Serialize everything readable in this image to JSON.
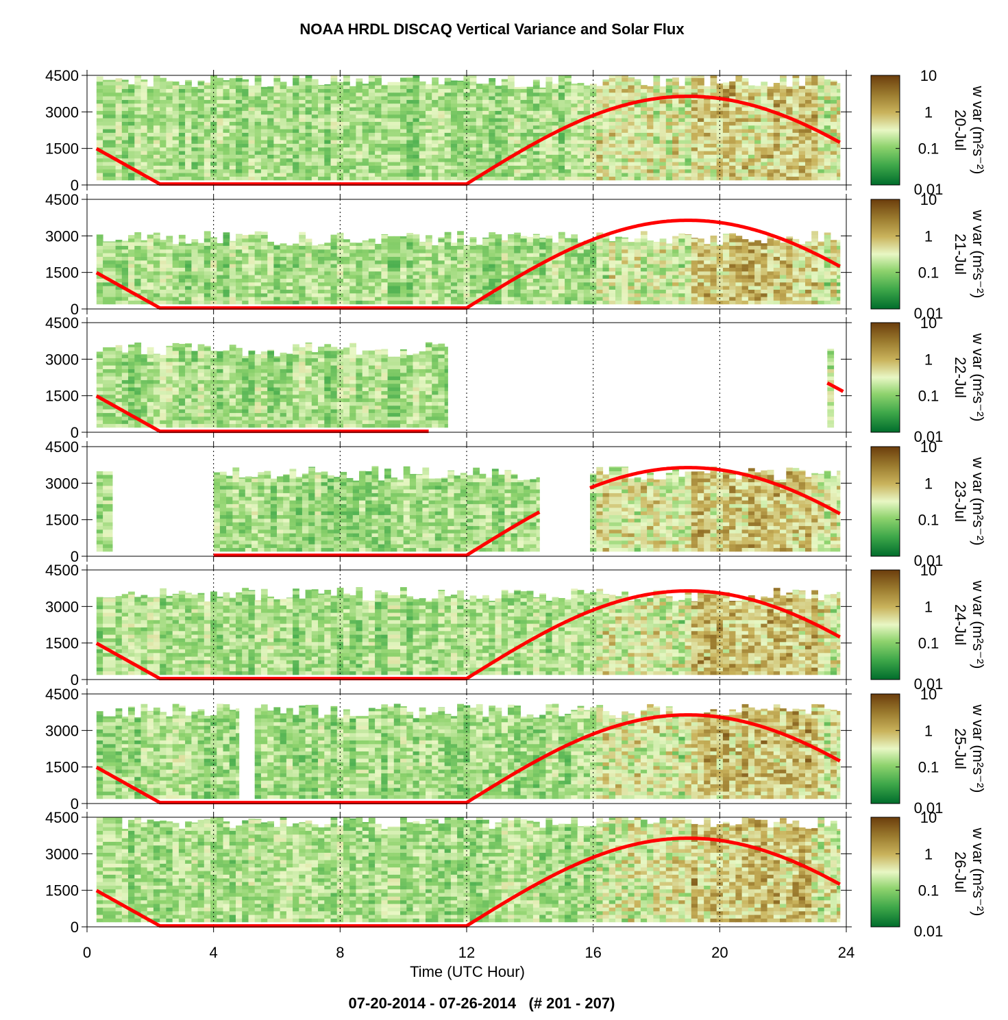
{
  "title": "NOAA HRDL DISCAQ Vertical Variance and Solar Flux",
  "footer": "07-20-2014 - 07-26-2014   (# 201 - 207)",
  "xlabel": "Time (UTC Hour)",
  "colorbar_label": "w var (m²s⁻²)",
  "colors": {
    "flux_line": "#ff0000",
    "colormap": [
      "#006d2c",
      "#3fa84a",
      "#8fd36e",
      "#e8f7c4",
      "#c9b35c",
      "#9a7a2e",
      "#6b3d0c"
    ]
  },
  "chart_data": [
    {
      "type": "heatmap",
      "day_label": "20-Jul",
      "x_range": [
        0,
        24
      ],
      "y_range": [
        0,
        4500
      ],
      "x_ticks": [
        "0",
        "4",
        "8",
        "12",
        "16",
        "20",
        "24"
      ],
      "y_ticks": [
        "0",
        "1500",
        "3000",
        "4500"
      ],
      "colorbar": {
        "scale": "log",
        "range": [
          0.01,
          10
        ],
        "ticks": [
          "0.01",
          "0.1",
          "1",
          "10"
        ]
      },
      "data_extent": [
        [
          0.3,
          23.8
        ]
      ],
      "data_top_height": 4400,
      "flux_segments": [
        [
          0.3,
          23.8
        ]
      ],
      "grid": "dotted vertical at 4-hour intervals"
    },
    {
      "type": "heatmap",
      "day_label": "21-Jul",
      "x_range": [
        0,
        24
      ],
      "y_range": [
        0,
        4500
      ],
      "x_ticks": [
        "0",
        "4",
        "8",
        "12",
        "16",
        "20",
        "24"
      ],
      "y_ticks": [
        "0",
        "1500",
        "3000",
        "4500"
      ],
      "colorbar": {
        "scale": "log",
        "range": [
          0.01,
          10
        ],
        "ticks": [
          "0.01",
          "0.1",
          "1",
          "10"
        ]
      },
      "data_extent": [
        [
          0.3,
          23.8
        ]
      ],
      "data_top_height": 3000,
      "flux_segments": [
        [
          0.3,
          23.8
        ]
      ],
      "grid": "dotted vertical at 4-hour intervals"
    },
    {
      "type": "heatmap",
      "day_label": "22-Jul",
      "x_range": [
        0,
        24
      ],
      "y_range": [
        0,
        4500
      ],
      "x_ticks": [
        "0",
        "4",
        "8",
        "12",
        "16",
        "20",
        "24"
      ],
      "y_ticks": [
        "0",
        "1500",
        "3000",
        "4500"
      ],
      "colorbar": {
        "scale": "log",
        "range": [
          0.01,
          10
        ],
        "ticks": [
          "0.01",
          "0.1",
          "1",
          "10"
        ]
      },
      "data_extent": [
        [
          0.3,
          11.4
        ],
        [
          23.4,
          23.6
        ]
      ],
      "data_top_height": 3500,
      "flux_segments": [
        [
          0.3,
          10.8
        ],
        [
          23.4,
          23.9
        ]
      ],
      "grid": "dotted vertical at 4-hour intervals"
    },
    {
      "type": "heatmap",
      "day_label": "23-Jul",
      "x_range": [
        0,
        24
      ],
      "y_range": [
        0,
        4500
      ],
      "x_ticks": [
        "0",
        "4",
        "8",
        "12",
        "16",
        "20",
        "24"
      ],
      "y_ticks": [
        "0",
        "1500",
        "3000",
        "4500"
      ],
      "colorbar": {
        "scale": "log",
        "range": [
          0.01,
          10
        ],
        "ticks": [
          "0.01",
          "0.1",
          "1",
          "10"
        ]
      },
      "data_extent": [
        [
          0.3,
          0.8
        ],
        [
          4.0,
          14.3
        ],
        [
          15.9,
          23.8
        ]
      ],
      "data_top_height": 3500,
      "flux_segments": [
        [
          4.0,
          14.3
        ],
        [
          15.9,
          23.8
        ]
      ],
      "grid": "dotted vertical at 4-hour intervals"
    },
    {
      "type": "heatmap",
      "day_label": "24-Jul",
      "x_range": [
        0,
        24
      ],
      "y_range": [
        0,
        4500
      ],
      "x_ticks": [
        "0",
        "4",
        "8",
        "12",
        "16",
        "20",
        "24"
      ],
      "y_ticks": [
        "0",
        "1500",
        "3000",
        "4500"
      ],
      "colorbar": {
        "scale": "log",
        "range": [
          0.01,
          10
        ],
        "ticks": [
          "0.01",
          "0.1",
          "1",
          "10"
        ]
      },
      "data_extent": [
        [
          0.3,
          23.8
        ]
      ],
      "data_top_height": 3600,
      "flux_segments": [
        [
          0.3,
          23.8
        ]
      ],
      "grid": "dotted vertical at 4-hour intervals"
    },
    {
      "type": "heatmap",
      "day_label": "25-Jul",
      "x_range": [
        0,
        24
      ],
      "y_range": [
        0,
        4500
      ],
      "x_ticks": [
        "0",
        "4",
        "8",
        "12",
        "16",
        "20",
        "24"
      ],
      "y_ticks": [
        "0",
        "1500",
        "3000",
        "4500"
      ],
      "colorbar": {
        "scale": "log",
        "range": [
          0.01,
          10
        ],
        "ticks": [
          "0.01",
          "0.1",
          "1",
          "10"
        ]
      },
      "data_extent": [
        [
          0.3,
          4.8
        ],
        [
          5.3,
          23.8
        ]
      ],
      "data_top_height": 3900,
      "flux_segments": [
        [
          0.3,
          23.8
        ]
      ],
      "grid": "dotted vertical at 4-hour intervals"
    },
    {
      "type": "heatmap",
      "day_label": "26-Jul",
      "x_range": [
        0,
        24
      ],
      "y_range": [
        0,
        4500
      ],
      "x_ticks": [
        "0",
        "4",
        "8",
        "12",
        "16",
        "20",
        "24"
      ],
      "y_ticks": [
        "0",
        "1500",
        "3000",
        "4500"
      ],
      "colorbar": {
        "scale": "log",
        "range": [
          0.01,
          10
        ],
        "ticks": [
          "0.01",
          "0.1",
          "1",
          "10"
        ]
      },
      "data_extent": [
        [
          0.3,
          23.8
        ]
      ],
      "data_top_height": 4400,
      "flux_segments": [
        [
          0.3,
          23.8
        ]
      ],
      "grid": "dotted vertical at 4-hour intervals"
    }
  ],
  "solar_flux_curve": {
    "zero_from_hour": 2.3,
    "zero_to_hour": 12.0,
    "peak_hour": 19.0,
    "peak_height": 3600,
    "start_height": 1450
  }
}
